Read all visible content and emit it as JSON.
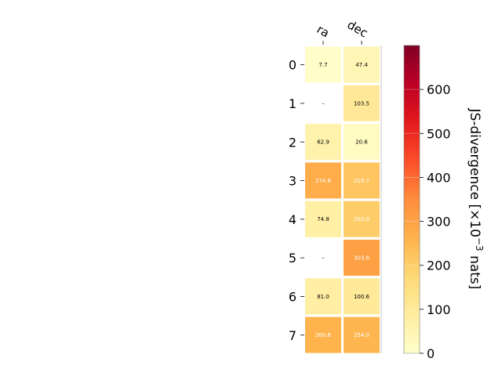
{
  "chart_data": {
    "type": "heatmap",
    "columns": [
      "ra",
      "dec"
    ],
    "rows": [
      "0",
      "1",
      "2",
      "3",
      "4",
      "5",
      "6",
      "7"
    ],
    "values": [
      [
        7.7,
        47.4
      ],
      [
        null,
        103.5
      ],
      [
        62.9,
        20.6
      ],
      [
        274.8,
        219.7
      ],
      [
        74.8,
        202.0
      ],
      [
        null,
        303.6
      ],
      [
        81.0,
        100.6
      ],
      [
        260.6,
        254.0
      ]
    ],
    "cell_labels": [
      [
        "7.7",
        "47.4"
      ],
      [
        "–",
        "103.5"
      ],
      [
        "62.9",
        "20.6"
      ],
      [
        "274.8",
        "219.7"
      ],
      [
        "74.8",
        "202.0"
      ],
      [
        "–",
        "303.6"
      ],
      [
        "81.0",
        "100.6"
      ],
      [
        "260.6",
        "254.0"
      ]
    ],
    "colormap": "YlOrRd",
    "colorbar": {
      "label_main": "JS-divergence [×10",
      "label_exp": "−3",
      "label_unit": " nats]",
      "range": [
        0,
        700
      ],
      "ticks": [
        0,
        100,
        200,
        300,
        400,
        500,
        600
      ]
    },
    "grid": false
  }
}
